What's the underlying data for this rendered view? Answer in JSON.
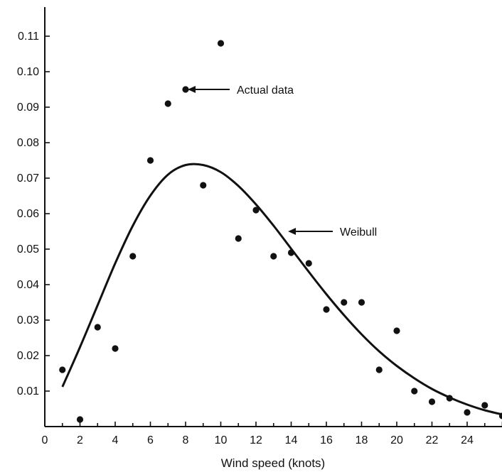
{
  "chart_data": {
    "type": "scatter",
    "xlabel": "Wind speed (knots)",
    "ylabel": "",
    "xlim": [
      0,
      26
    ],
    "ylim": [
      0,
      0.12
    ],
    "x_ticks": [
      0,
      2,
      4,
      6,
      8,
      10,
      12,
      14,
      16,
      18,
      20,
      22,
      24
    ],
    "y_ticks": [
      0.01,
      0.02,
      0.03,
      0.04,
      0.05,
      0.06,
      0.07,
      0.08,
      0.09,
      0.1,
      0.11
    ],
    "y_tick_labels": [
      "0.01",
      "0.02",
      "0.03",
      "0.04",
      "0.05",
      "0.06",
      "0.07",
      "0.08",
      "0.09",
      "0.10",
      "0.11"
    ],
    "grid": false,
    "series": [
      {
        "name": "Actual data",
        "kind": "points",
        "points": [
          [
            1,
            0.016
          ],
          [
            2,
            0.002
          ],
          [
            3,
            0.028
          ],
          [
            4,
            0.022
          ],
          [
            5,
            0.048
          ],
          [
            6,
            0.075
          ],
          [
            7,
            0.091
          ],
          [
            8,
            0.095
          ],
          [
            9,
            0.068
          ],
          [
            10,
            0.108
          ],
          [
            11,
            0.053
          ],
          [
            12,
            0.061
          ],
          [
            13,
            0.048
          ],
          [
            14,
            0.049
          ],
          [
            15,
            0.046
          ],
          [
            16,
            0.033
          ],
          [
            17,
            0.035
          ],
          [
            18,
            0.035
          ],
          [
            19,
            0.016
          ],
          [
            20,
            0.027
          ],
          [
            21,
            0.01
          ],
          [
            22,
            0.007
          ],
          [
            23,
            0.008
          ],
          [
            24,
            0.004
          ],
          [
            25,
            0.006
          ],
          [
            26,
            0.003
          ]
        ]
      },
      {
        "name": "Weibull",
        "kind": "curve",
        "points": [
          [
            1,
            0.0112
          ],
          [
            2,
            0.0224
          ],
          [
            3,
            0.0342
          ],
          [
            4,
            0.046
          ],
          [
            5,
            0.0566
          ],
          [
            6,
            0.0651
          ],
          [
            7,
            0.071
          ],
          [
            8,
            0.0737
          ],
          [
            9,
            0.0737
          ],
          [
            10,
            0.0717
          ],
          [
            11,
            0.0678
          ],
          [
            12,
            0.0626
          ],
          [
            13,
            0.0566
          ],
          [
            14,
            0.0501
          ],
          [
            15,
            0.0436
          ],
          [
            16,
            0.0373
          ],
          [
            17,
            0.0314
          ],
          [
            18,
            0.026
          ],
          [
            19,
            0.0212
          ],
          [
            20,
            0.0171
          ],
          [
            21,
            0.0136
          ],
          [
            22,
            0.0106
          ],
          [
            23,
            0.0082
          ],
          [
            24,
            0.0062
          ],
          [
            25,
            0.0046
          ],
          [
            26,
            0.0034
          ]
        ]
      }
    ],
    "annotations": [
      {
        "text": "Actual data",
        "points_to": [
          8,
          0.095
        ]
      },
      {
        "text": "Weibull",
        "points_to": [
          13.7,
          0.055
        ]
      }
    ]
  }
}
